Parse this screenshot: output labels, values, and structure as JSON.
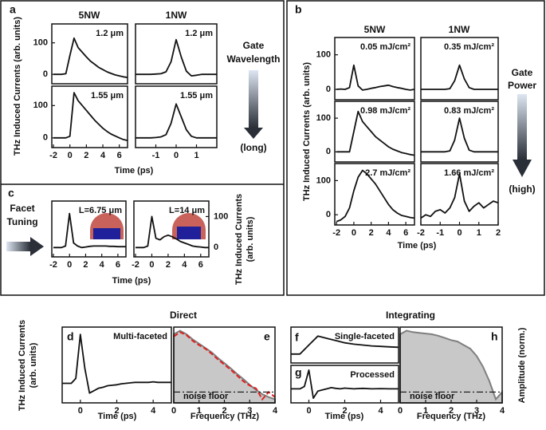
{
  "figure": {
    "panel_labels": [
      "a",
      "b",
      "c",
      "d",
      "e",
      "f",
      "g",
      "h"
    ],
    "a_headers": [
      "5NW",
      "1NW"
    ],
    "b_headers": [
      "5NW",
      "1NW"
    ],
    "gate_wavelength": [
      "Gate",
      "Wavelength",
      "(long)"
    ],
    "gate_power": [
      "Gate",
      "Power",
      "(high)"
    ],
    "facet_tuning": [
      "Facet",
      "Tuning"
    ],
    "direct": "Direct",
    "integrating": "Integrating"
  },
  "chart_data": [
    {
      "type": "line",
      "label": "1.2 μm",
      "label_color": "#1e9be0",
      "color": "#111",
      "x": [
        -2,
        -1.5,
        -1,
        -0.5,
        0,
        0.5,
        1,
        1.5,
        2,
        2.5,
        3,
        3.5,
        4,
        4.5,
        5,
        5.5,
        6,
        6.5,
        7
      ],
      "values": [
        0,
        0,
        0,
        2,
        60,
        115,
        85,
        70,
        55,
        42,
        32,
        22,
        15,
        8,
        3,
        -2,
        -5,
        -8,
        -10
      ],
      "xlim": [
        -2.2,
        7
      ],
      "ylim": [
        -30,
        160
      ],
      "yticks": [
        0,
        100
      ],
      "ylabel": "THz Induced Currents (arb. units)"
    },
    {
      "type": "line",
      "label": "1.55 μm",
      "label_color": "#1e9be0",
      "color": "#111",
      "x": [
        -2,
        -1.5,
        -1,
        -0.5,
        0,
        0.5,
        1,
        1.5,
        2,
        2.5,
        3,
        3.5,
        4,
        4.5,
        5,
        5.5,
        6,
        6.5,
        7
      ],
      "values": [
        0,
        0,
        0,
        0,
        5,
        140,
        115,
        100,
        85,
        70,
        55,
        42,
        30,
        20,
        12,
        6,
        0,
        -5,
        -8
      ],
      "xlim": [
        -2.2,
        7
      ],
      "ylim": [
        -30,
        160
      ],
      "yticks": [
        0,
        100
      ],
      "xticks": [
        -2,
        0,
        2,
        4,
        6
      ],
      "xlabel": "Time (ps)"
    },
    {
      "type": "line",
      "label": "1.2 μm",
      "label_color": "#f08a1c",
      "color": "#111",
      "x": [
        -2,
        -1.75,
        -1.5,
        -1.25,
        -1,
        -0.75,
        -0.5,
        -0.25,
        0,
        0.25,
        0.5,
        0.75,
        1,
        1.25,
        1.5,
        1.75,
        2
      ],
      "values": [
        0,
        0,
        0,
        0,
        1,
        2,
        8,
        40,
        110,
        55,
        10,
        -5,
        -3,
        0,
        0,
        0,
        0
      ],
      "xlim": [
        -2,
        2
      ],
      "ylim": [
        -30,
        160
      ]
    },
    {
      "type": "line",
      "label": "1.55 μm",
      "label_color": "#f08a1c",
      "color": "#111",
      "x": [
        -2,
        -1.75,
        -1.5,
        -1.25,
        -1,
        -0.75,
        -0.5,
        -0.25,
        0,
        0.25,
        0.5,
        0.75,
        1,
        1.25,
        1.5,
        1.75,
        2
      ],
      "values": [
        0,
        0,
        0,
        0,
        1,
        3,
        10,
        45,
        105,
        65,
        25,
        5,
        0,
        0,
        0,
        0,
        0
      ],
      "xlim": [
        -2,
        2
      ],
      "ylim": [
        -30,
        160
      ],
      "xticks": [
        -1,
        0,
        1
      ]
    },
    {
      "type": "line",
      "label": "0.05 mJ/cm²",
      "label_color": "#1e9be0",
      "color": "#111",
      "x": [
        -2,
        -1.5,
        -1,
        -0.5,
        0,
        0.5,
        1,
        1.5,
        2,
        2.5,
        3,
        3.5,
        4,
        4.5,
        5,
        5.5,
        6,
        6.5,
        7
      ],
      "values": [
        0,
        1,
        0,
        5,
        70,
        10,
        -2,
        0,
        3,
        5,
        8,
        10,
        12,
        8,
        5,
        3,
        0,
        -2,
        0
      ],
      "xlim": [
        -2.2,
        7
      ],
      "ylim": [
        -30,
        150
      ],
      "yticks": [
        0,
        100
      ],
      "ylabel": "THz Induced Currents (arb. units)"
    },
    {
      "type": "line",
      "label": "0.98 mJ/cm²",
      "label_color": "#1e9be0",
      "color": "#111",
      "x": [
        -2,
        -1.5,
        -1,
        -0.5,
        0,
        0.5,
        1,
        1.5,
        2,
        2.5,
        3,
        3.5,
        4,
        4.5,
        5,
        5.5,
        6,
        6.5,
        7
      ],
      "values": [
        0,
        0,
        0,
        0,
        60,
        120,
        90,
        75,
        60,
        45,
        35,
        25,
        15,
        8,
        3,
        -2,
        -5,
        -8,
        -10
      ],
      "xlim": [
        -2.2,
        7
      ],
      "ylim": [
        -30,
        150
      ],
      "yticks": [
        0,
        100
      ]
    },
    {
      "type": "line",
      "label": "2.7 mJ/cm²",
      "label_color": "#1e9be0",
      "color": "#111",
      "x": [
        -2,
        -1.5,
        -1,
        -0.5,
        0,
        0.5,
        1,
        1.5,
        2,
        2.5,
        3,
        3.5,
        4,
        4.5,
        5,
        5.5,
        6,
        6.5,
        7
      ],
      "values": [
        -20,
        -15,
        -5,
        20,
        70,
        110,
        130,
        120,
        105,
        90,
        70,
        50,
        30,
        15,
        5,
        -2,
        -5,
        -8,
        -10
      ],
      "xlim": [
        -2.2,
        7
      ],
      "ylim": [
        -30,
        150
      ],
      "yticks": [
        0,
        100
      ],
      "xticks": [
        -2,
        0,
        2,
        4,
        6
      ],
      "xlabel": "Time (ps)"
    },
    {
      "type": "line",
      "label": "0.35 mJ/cm²",
      "label_color": "#f08a1c",
      "color": "#111",
      "x": [
        -2,
        -1.75,
        -1.5,
        -1.25,
        -1,
        -0.75,
        -0.5,
        -0.25,
        0,
        0.25,
        0.5,
        0.75,
        1,
        1.25,
        1.5,
        1.75,
        2
      ],
      "values": [
        0,
        0,
        0,
        0,
        0,
        0,
        2,
        25,
        70,
        30,
        5,
        0,
        0,
        0,
        0,
        0,
        0
      ],
      "xlim": [
        -2,
        2
      ],
      "ylim": [
        -30,
        150
      ]
    },
    {
      "type": "line",
      "label": "0.83 mJ/cm²",
      "label_color": "#f08a1c",
      "color": "#111",
      "x": [
        -2,
        -1.75,
        -1.5,
        -1.25,
        -1,
        -0.75,
        -0.5,
        -0.25,
        0,
        0.25,
        0.5,
        0.75,
        1,
        1.25,
        1.5,
        1.75,
        2
      ],
      "values": [
        0,
        0,
        0,
        0,
        0,
        0,
        3,
        35,
        100,
        40,
        5,
        0,
        0,
        0,
        0,
        0,
        0
      ],
      "xlim": [
        -2,
        2
      ],
      "ylim": [
        -30,
        150
      ]
    },
    {
      "type": "line",
      "label": "1.66 mJ/cm²",
      "label_color": "#f08a1c",
      "color": "#111",
      "x": [
        -2,
        -1.75,
        -1.5,
        -1.25,
        -1,
        -0.75,
        -0.5,
        -0.25,
        0,
        0.25,
        0.5,
        0.75,
        1,
        1.25,
        1.5,
        1.75,
        2
      ],
      "values": [
        -10,
        0,
        -5,
        10,
        15,
        5,
        20,
        50,
        120,
        40,
        10,
        25,
        35,
        20,
        30,
        40,
        35
      ],
      "xlim": [
        -2,
        2
      ],
      "ylim": [
        -30,
        150
      ],
      "xticks": [
        -2,
        -1,
        0,
        1,
        2
      ]
    },
    {
      "type": "line",
      "label": "L=6.75 μm",
      "label_color": "#f08a1c",
      "color": "#111",
      "x": [
        -2,
        -1.5,
        -1,
        -0.5,
        0,
        0.5,
        1,
        1.5,
        2,
        2.5,
        3,
        3.5,
        4,
        4.5,
        5,
        5.5,
        6,
        6.5,
        7
      ],
      "values": [
        0,
        0,
        0,
        5,
        110,
        15,
        5,
        0,
        2,
        4,
        5,
        5,
        5,
        5,
        4,
        4,
        3,
        3,
        3
      ],
      "xlim": [
        -2.2,
        7
      ],
      "ylim": [
        -30,
        150
      ],
      "xticks": [
        -2,
        0,
        2,
        4,
        6
      ],
      "xlabel": "Time (ps)"
    },
    {
      "type": "line",
      "label": "L=14 μm",
      "label_color": "#f08a1c",
      "color": "#111",
      "x": [
        -2,
        -1.5,
        -1,
        -0.5,
        0,
        0.5,
        1,
        1.5,
        2,
        2.5,
        3,
        3.5,
        4,
        4.5,
        5,
        5.5,
        6,
        6.5,
        7
      ],
      "values": [
        0,
        0,
        0,
        5,
        100,
        30,
        25,
        35,
        40,
        35,
        28,
        20,
        15,
        10,
        5,
        3,
        2,
        0,
        0
      ],
      "xlim": [
        -2.2,
        7
      ],
      "ylim": [
        -30,
        150
      ],
      "xticks": [
        -2,
        0,
        2,
        4,
        6
      ],
      "yticks": [
        0,
        100
      ],
      "yaxis_side": "right",
      "ylabel": [
        "THz Induced Currents",
        "(arb. units)"
      ]
    },
    {
      "type": "line",
      "label": "Multi-faceted",
      "label_color": "#111",
      "color": "#111",
      "x": [
        -1,
        -0.75,
        -0.5,
        -0.25,
        0,
        0.25,
        0.5,
        0.75,
        1,
        1.25,
        1.5,
        1.75,
        2,
        2.25,
        2.5,
        2.75,
        3,
        3.25,
        3.5,
        3.75,
        4,
        4.25,
        4.5,
        4.75,
        5
      ],
      "values": [
        0,
        0,
        0,
        10,
        100,
        30,
        -20,
        -15,
        -10,
        -8,
        -5,
        -4,
        -3,
        -1,
        0,
        1,
        2,
        2,
        2,
        2,
        3,
        2,
        2,
        2,
        2
      ],
      "xlim": [
        -1,
        5
      ],
      "ylim": [
        -40,
        115
      ],
      "xticks": [
        0,
        2,
        4
      ],
      "xlabel": "Time (ps)",
      "ylabel": [
        "THz Induced Currents",
        "(arb. units)"
      ]
    },
    {
      "type": "area",
      "hline": 15,
      "hline_label": "noise floor",
      "x": [
        0,
        0.25,
        0.5,
        0.75,
        1,
        1.25,
        1.5,
        1.75,
        2,
        2.25,
        2.5,
        2.75,
        3,
        3.25,
        3.5,
        3.75,
        4
      ],
      "series": [
        {
          "color": "#7f7f7f",
          "values": [
            95,
            100,
            95,
            88,
            82,
            76,
            70,
            62,
            55,
            48,
            40,
            33,
            25,
            18,
            12,
            8,
            5
          ]
        },
        {
          "color": "#e02020",
          "values": [
            92,
            98,
            94,
            86,
            80,
            75,
            68,
            60,
            53,
            46,
            38,
            30,
            24,
            20,
            5,
            15,
            8
          ]
        }
      ],
      "xlim": [
        0,
        4
      ],
      "ylim": [
        0,
        105
      ],
      "xticks": [
        0,
        1,
        2,
        3,
        4
      ],
      "xlabel": "Frequency (THz)"
    },
    {
      "type": "line",
      "label": "Single-faceted",
      "label_color": "#111",
      "color": "#111",
      "x": [
        -1,
        -0.5,
        0,
        0.5,
        1,
        1.5,
        2,
        2.5,
        3,
        3.5,
        4,
        4.5,
        5
      ],
      "values": [
        0,
        0,
        20,
        40,
        35,
        30,
        25,
        22,
        20,
        18,
        17,
        16,
        15
      ],
      "xlim": [
        -1,
        5
      ],
      "ylim": [
        -20,
        60
      ]
    },
    {
      "type": "line",
      "label": "Processed",
      "label_color": "#111",
      "color": "#111",
      "x": [
        -1,
        -0.75,
        -0.5,
        -0.25,
        0,
        0.25,
        0.5,
        0.75,
        1,
        1.25,
        1.5,
        1.75,
        2,
        2.5,
        3,
        3.5,
        4,
        4.5,
        5
      ],
      "values": [
        0,
        0,
        0,
        10,
        80,
        -40,
        -10,
        -5,
        0,
        5,
        2,
        0,
        3,
        0,
        2,
        0,
        1,
        0,
        0
      ],
      "xlim": [
        -1,
        5
      ],
      "ylim": [
        -60,
        100
      ],
      "xticks": [
        0,
        2,
        4
      ],
      "xlabel": "Time (ps)"
    },
    {
      "type": "area",
      "hline": 15,
      "hline_label": "noise floor",
      "x": [
        0,
        0.25,
        0.5,
        0.75,
        1,
        1.25,
        1.5,
        1.75,
        2,
        2.25,
        2.5,
        2.75,
        3,
        3.25,
        3.5,
        3.75,
        4
      ],
      "series": [
        {
          "color": "#7f7f7f",
          "values": [
            95,
            100,
            98,
            97,
            96,
            95,
            93,
            90,
            87,
            85,
            80,
            75,
            65,
            50,
            30,
            5,
            15
          ]
        }
      ],
      "xlim": [
        0,
        4
      ],
      "ylim": [
        0,
        105
      ],
      "xticks": [
        0,
        1,
        2,
        3,
        4
      ],
      "xlabel": "Frequency (THz)",
      "ylabel": "Amplitude (norm.)"
    }
  ]
}
